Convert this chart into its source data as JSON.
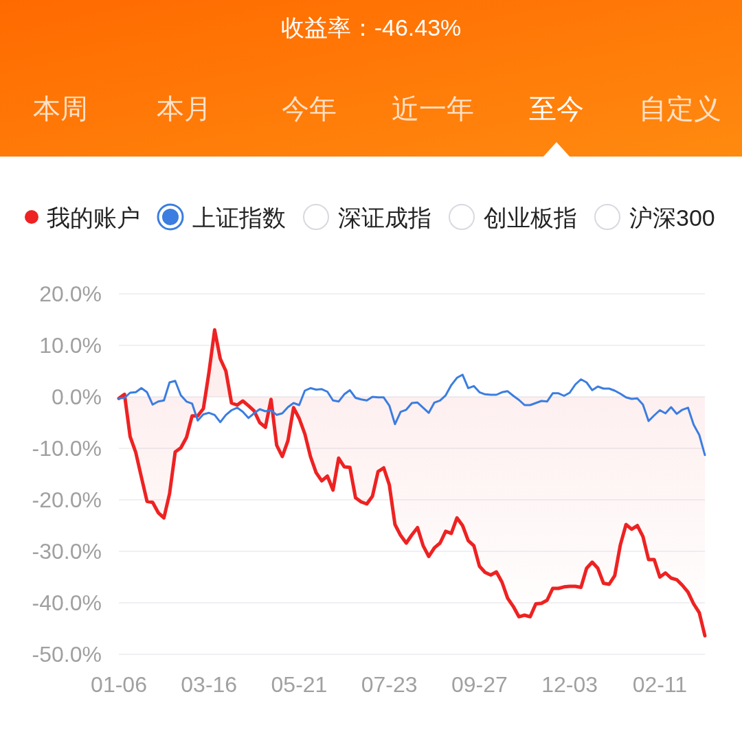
{
  "chart_data": {
    "type": "line",
    "title": "收益率：-46.43%",
    "annotations": [
      "本周",
      "本月",
      "今年",
      "近一年",
      "至今",
      "自定义",
      "深证成指",
      "创业板指",
      "沪深300"
    ],
    "categories": [
      "01-06",
      null,
      null,
      null,
      null,
      null,
      null,
      null,
      null,
      null,
      null,
      null,
      null,
      null,
      null,
      null,
      "03-16",
      null,
      null,
      null,
      null,
      null,
      null,
      null,
      null,
      null,
      null,
      null,
      null,
      null,
      null,
      null,
      "05-21",
      null,
      null,
      null,
      null,
      null,
      null,
      null,
      null,
      null,
      null,
      null,
      null,
      null,
      null,
      null,
      "07-23",
      null,
      null,
      null,
      null,
      null,
      null,
      null,
      null,
      null,
      null,
      null,
      null,
      null,
      null,
      null,
      "09-27",
      null,
      null,
      null,
      null,
      null,
      null,
      null,
      null,
      null,
      null,
      null,
      null,
      null,
      null,
      null,
      "12-03",
      null,
      null,
      null,
      null,
      null,
      null,
      null,
      null,
      null,
      null,
      null,
      null,
      null,
      null,
      null,
      "02-11",
      null,
      null,
      null,
      null,
      null,
      null,
      null,
      null
    ],
    "ylim": [
      -50,
      20
    ],
    "yticks": [
      {
        "value": 20,
        "label": "20.0%"
      },
      {
        "value": 10,
        "label": "10.0%"
      },
      {
        "value": 0,
        "label": "0.0%"
      },
      {
        "value": -10,
        "label": "-10.0%"
      },
      {
        "value": -20,
        "label": "-20.0%"
      },
      {
        "value": -30,
        "label": "-30.0%"
      },
      {
        "value": -40,
        "label": "-40.0%"
      },
      {
        "value": -50,
        "label": "-50.0%"
      }
    ],
    "grid": "y",
    "legend": "top",
    "series": [
      {
        "name": "我的账户",
        "type": "area",
        "color": "#ee2222",
        "values": [
          -0.3,
          0.5,
          -7.7,
          -10.8,
          -15.6,
          -20.3,
          -20.5,
          -22.5,
          -23.5,
          -18.8,
          -10.7,
          -9.9,
          -7.9,
          -3.7,
          -3.7,
          -2.3,
          4.8,
          13.0,
          7.4,
          5.0,
          -1.2,
          -1.6,
          -0.8,
          -1.7,
          -2.7,
          -5.0,
          -5.9,
          -0.5,
          -9.4,
          -11.6,
          -8.5,
          -2.1,
          -4.2,
          -7.2,
          -11.6,
          -14.7,
          -16.3,
          -15.4,
          -18.1,
          -11.9,
          -13.6,
          -13.7,
          -19.6,
          -20.4,
          -20.8,
          -19.3,
          -14.5,
          -13.8,
          -17.1,
          -24.8,
          -26.9,
          -28.4,
          -26.8,
          -25.4,
          -28.9,
          -31.0,
          -29.3,
          -28.4,
          -26.1,
          -26.5,
          -23.5,
          -25.0,
          -27.9,
          -28.9,
          -32.9,
          -34.1,
          -34.6,
          -34.0,
          -36.0,
          -39.1,
          -40.7,
          -42.7,
          -42.4,
          -42.7,
          -40.2,
          -40.1,
          -39.5,
          -37.2,
          -37.2,
          -36.9,
          -36.8,
          -36.8,
          -37.0,
          -33.3,
          -32.1,
          -33.3,
          -36.2,
          -36.4,
          -34.7,
          -28.7,
          -24.8,
          -25.7,
          -25.0,
          -27.1,
          -31.6,
          -31.6,
          -35.0,
          -34.2,
          -35.2,
          -35.5,
          -36.6,
          -37.9,
          -40.2,
          -41.9,
          -46.4
        ]
      },
      {
        "name": "上证指数",
        "type": "line",
        "color": "#3b7de0",
        "values": [
          -0.3,
          -0.2,
          0.8,
          0.9,
          1.7,
          0.9,
          -1.5,
          -0.9,
          -0.7,
          2.8,
          3.1,
          0.3,
          -0.9,
          -1.3,
          -4.6,
          -3.4,
          -3.1,
          -3.5,
          -4.9,
          -3.5,
          -2.6,
          -2.1,
          -2.9,
          -4.1,
          -3.2,
          -2.4,
          -2.8,
          -2.6,
          -3.5,
          -3.2,
          -2.0,
          -1.2,
          -1.6,
          1.2,
          1.7,
          1.4,
          1.5,
          1.0,
          -0.7,
          -0.9,
          0.5,
          1.3,
          -0.2,
          -0.5,
          -0.7,
          0.0,
          -0.1,
          -0.1,
          -1.7,
          -5.3,
          -2.9,
          -2.5,
          -1.2,
          -1.1,
          -2.1,
          -3.1,
          -1.1,
          -0.7,
          0.3,
          2.3,
          3.7,
          4.3,
          1.7,
          2.1,
          0.9,
          0.5,
          0.4,
          0.4,
          0.9,
          1.1,
          0.2,
          -0.6,
          -1.6,
          -1.6,
          -1.2,
          -0.8,
          -0.9,
          0.7,
          0.7,
          0.2,
          0.8,
          2.4,
          3.4,
          2.8,
          1.3,
          2.0,
          1.6,
          1.6,
          1.2,
          0.6,
          -0.1,
          -0.4,
          -0.3,
          -1.5,
          -4.7,
          -3.6,
          -2.6,
          -3.2,
          -2.0,
          -3.3,
          -2.5,
          -2.1,
          -5.4,
          -7.4,
          -11.3
        ]
      }
    ]
  }
}
